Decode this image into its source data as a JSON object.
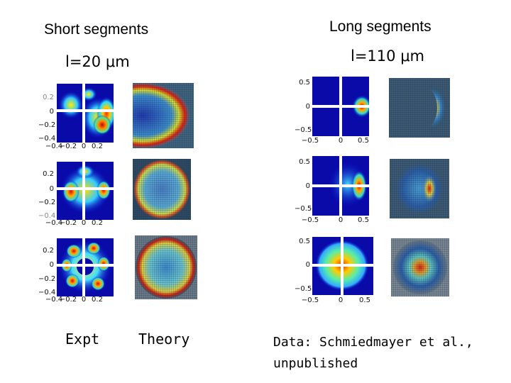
{
  "headings": {
    "short": "Short segments",
    "long": "Long segments",
    "short_length": "l=20 μm",
    "long_length": "l=110 μm"
  },
  "captions": {
    "expt": "Expt",
    "theory": "Theory"
  },
  "credit": {
    "line1": "Data: Schmiedmayer et al.,",
    "line2": "unpublished"
  },
  "colors": {
    "colormap": "jet",
    "crosshair": "#ffffff",
    "theory_grid": "#1c2a3a"
  },
  "panels": {
    "short": [
      {
        "y_ticks": [
          "0.2",
          "0",
          "−0.2",
          "−0.4"
        ],
        "x_ticks": [
          "−0.4",
          "−0.2",
          "0",
          "0.2"
        ]
      },
      {
        "y_ticks": [
          "0.2",
          "0",
          "−0.2",
          "−0.4"
        ],
        "x_ticks": [
          "−0.4",
          "−0.2",
          "0",
          "0.2"
        ]
      },
      {
        "y_ticks": [
          "0.2",
          "0",
          "−0.2",
          "−0.4"
        ],
        "x_ticks": [
          "−0.4",
          "−0.2",
          "0",
          "0.2"
        ]
      }
    ],
    "long": [
      {
        "y_ticks": [
          "0.5",
          "0",
          "−0.5"
        ],
        "x_ticks": [
          "−0.5",
          "0",
          "0.5"
        ]
      },
      {
        "y_ticks": [
          "0.5",
          "0",
          "−0.5"
        ],
        "x_ticks": [
          "−0.5",
          "0",
          "0.5"
        ]
      },
      {
        "y_ticks": [
          "0.5",
          "0",
          "−0.5"
        ],
        "x_ticks": [
          "−0.5",
          "0",
          "0.5"
        ]
      }
    ]
  },
  "icon_names": [
    "heatmap-image",
    "theory-map-image"
  ]
}
